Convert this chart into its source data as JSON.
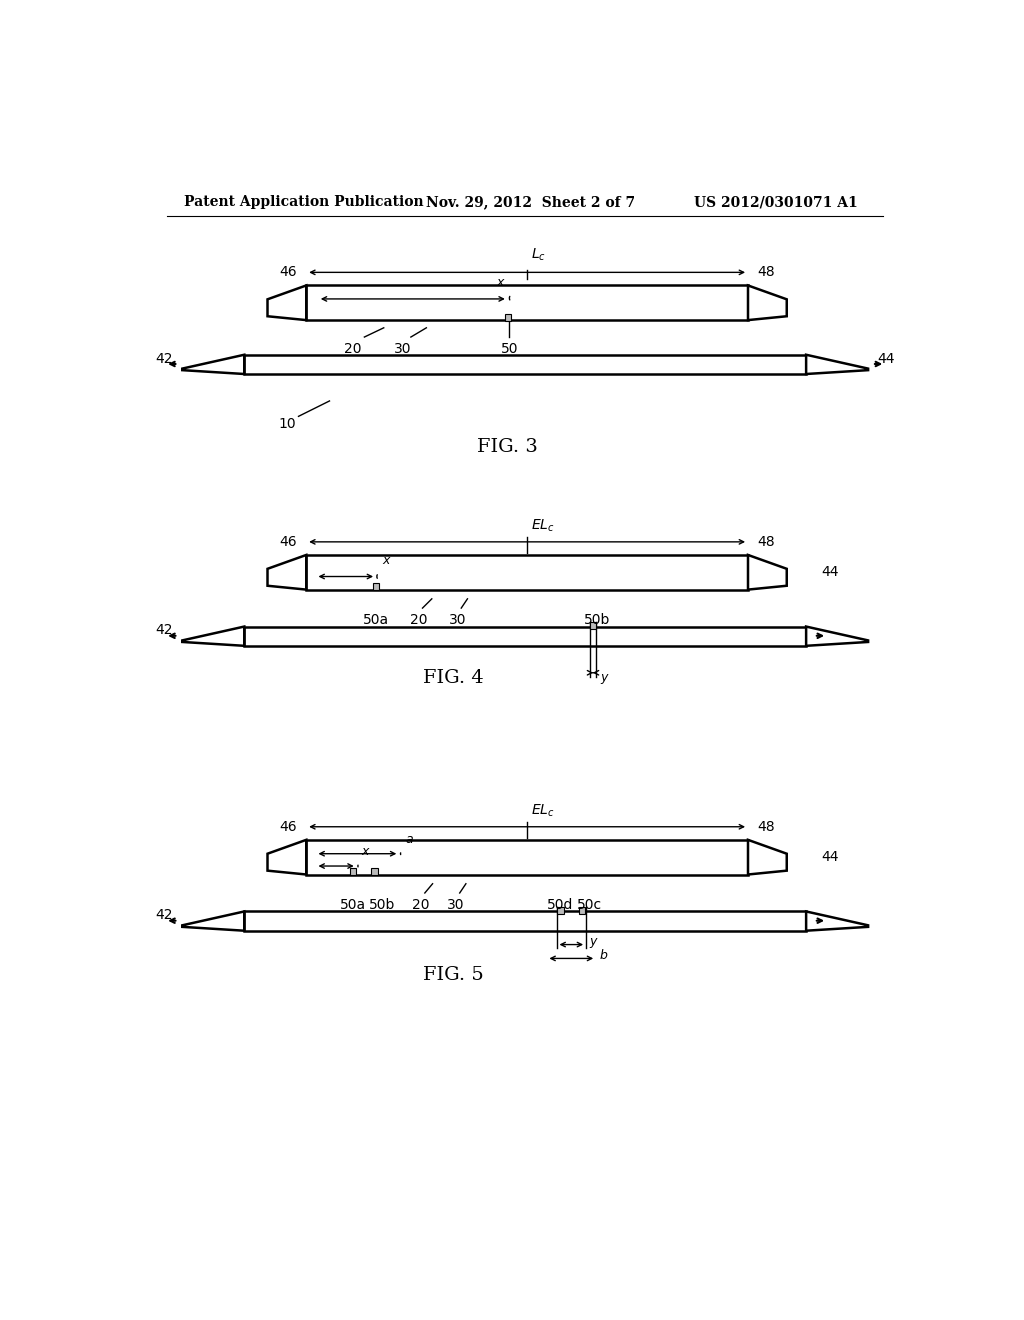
{
  "background_color": "#ffffff",
  "header_left": "Patent Application Publication",
  "header_center": "Nov. 29, 2012  Sheet 2 of 7",
  "header_right": "US 2012/0301071 A1",
  "fig3_label": "FIG. 3",
  "fig4_label": "FIG. 4",
  "fig5_label": "FIG. 5",
  "lw_thin": 1.0,
  "lw_med": 1.5,
  "lw_thick": 1.8,
  "font_label": 10,
  "font_fig": 14,
  "font_header": 10
}
